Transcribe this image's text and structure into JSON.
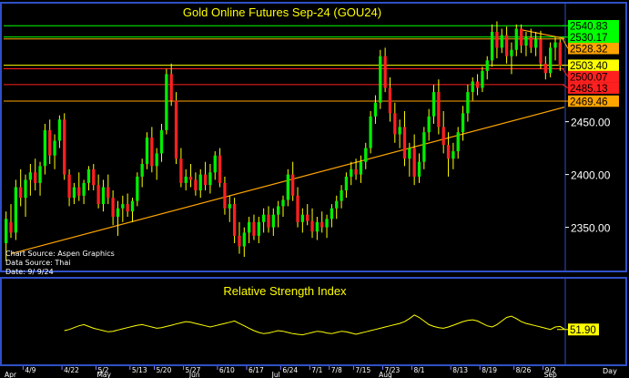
{
  "chart_data": [
    {
      "type": "candlestick",
      "title": "Gold Online Futures Sep-24 (GOU24)",
      "ylim": [
        2310,
        2560
      ],
      "y_ticks": [
        2350,
        2400,
        2450
      ],
      "y_tick_labels": [
        "2350.00",
        "2400.00",
        "2450.00"
      ],
      "x_date_labels": [
        "4/9",
        "4/22",
        "5/2",
        "5/13",
        "5/20",
        "5/27",
        "6/10",
        "6/17",
        "6/24",
        "7/1",
        "7/8",
        "7/15",
        "7/23",
        "8/1",
        "8/13",
        "8/19",
        "8/26",
        "9/2"
      ],
      "x_month_labels": [
        "Apr",
        "May",
        "Jun",
        "Jul",
        "Aug",
        "Sep"
      ],
      "x_end_label": "Day",
      "annotations": [
        "Chart Source: Aspen Graphics",
        "Data Source: Thai",
        "Date: 9/ 9/24"
      ],
      "horizontal_lines": [
        {
          "value": 2540.83,
          "label": "2540.83",
          "color": "#00ff00"
        },
        {
          "value": 2530.17,
          "label": "2530.17",
          "color": "#00ff00"
        },
        {
          "value": 2528.32,
          "label": "2528.32",
          "color": "#ffa500"
        },
        {
          "value": 2503.4,
          "label": "2503.40",
          "color": "#ffff00"
        },
        {
          "value": 2500.07,
          "label": "2500.07",
          "color": "#ff2020"
        },
        {
          "value": 2485.13,
          "label": "2485.13",
          "color": "#ff2020"
        },
        {
          "value": 2469.46,
          "label": "2469.46",
          "color": "#ffa500"
        }
      ],
      "trendlines": [
        {
          "from": [
            1,
            2325
          ],
          "to": [
            120,
            2470
          ],
          "color": "#ffa500"
        },
        {
          "from": [
            106,
            2537
          ],
          "to": [
            120,
            2524
          ],
          "color": "#ffa500"
        }
      ],
      "candles": [
        {
          "o": 2335,
          "h": 2365,
          "l": 2318,
          "c": 2358
        },
        {
          "o": 2355,
          "h": 2372,
          "l": 2340,
          "c": 2345
        },
        {
          "o": 2345,
          "h": 2395,
          "l": 2338,
          "c": 2388
        },
        {
          "o": 2388,
          "h": 2405,
          "l": 2370,
          "c": 2378
        },
        {
          "o": 2378,
          "h": 2400,
          "l": 2360,
          "c": 2395
        },
        {
          "o": 2395,
          "h": 2410,
          "l": 2380,
          "c": 2402
        },
        {
          "o": 2402,
          "h": 2415,
          "l": 2385,
          "c": 2392
        },
        {
          "o": 2392,
          "h": 2412,
          "l": 2380,
          "c": 2408
        },
        {
          "o": 2408,
          "h": 2448,
          "l": 2400,
          "c": 2442
        },
        {
          "o": 2442,
          "h": 2452,
          "l": 2410,
          "c": 2418
        },
        {
          "o": 2418,
          "h": 2438,
          "l": 2405,
          "c": 2432
        },
        {
          "o": 2432,
          "h": 2456,
          "l": 2425,
          "c": 2452
        },
        {
          "o": 2452,
          "h": 2458,
          "l": 2395,
          "c": 2400
        },
        {
          "o": 2400,
          "h": 2405,
          "l": 2370,
          "c": 2378
        },
        {
          "o": 2378,
          "h": 2392,
          "l": 2372,
          "c": 2388
        },
        {
          "o": 2388,
          "h": 2402,
          "l": 2375,
          "c": 2380
        },
        {
          "o": 2380,
          "h": 2395,
          "l": 2372,
          "c": 2392
        },
        {
          "o": 2392,
          "h": 2408,
          "l": 2385,
          "c": 2405
        },
        {
          "o": 2405,
          "h": 2410,
          "l": 2385,
          "c": 2390
        },
        {
          "o": 2390,
          "h": 2400,
          "l": 2368,
          "c": 2372
        },
        {
          "o": 2372,
          "h": 2395,
          "l": 2365,
          "c": 2388
        },
        {
          "o": 2388,
          "h": 2400,
          "l": 2372,
          "c": 2378
        },
        {
          "o": 2378,
          "h": 2385,
          "l": 2352,
          "c": 2360
        },
        {
          "o": 2360,
          "h": 2375,
          "l": 2342,
          "c": 2368
        },
        {
          "o": 2368,
          "h": 2380,
          "l": 2355,
          "c": 2372
        },
        {
          "o": 2372,
          "h": 2382,
          "l": 2360,
          "c": 2365
        },
        {
          "o": 2365,
          "h": 2378,
          "l": 2355,
          "c": 2375
        },
        {
          "o": 2375,
          "h": 2402,
          "l": 2370,
          "c": 2398
        },
        {
          "o": 2398,
          "h": 2415,
          "l": 2388,
          "c": 2410
        },
        {
          "o": 2410,
          "h": 2440,
          "l": 2405,
          "c": 2435
        },
        {
          "o": 2435,
          "h": 2445,
          "l": 2402,
          "c": 2408
        },
        {
          "o": 2408,
          "h": 2425,
          "l": 2395,
          "c": 2420
        },
        {
          "o": 2420,
          "h": 2448,
          "l": 2412,
          "c": 2442
        },
        {
          "o": 2442,
          "h": 2500,
          "l": 2438,
          "c": 2495
        },
        {
          "o": 2495,
          "h": 2505,
          "l": 2465,
          "c": 2470
        },
        {
          "o": 2470,
          "h": 2478,
          "l": 2410,
          "c": 2415
        },
        {
          "o": 2415,
          "h": 2425,
          "l": 2388,
          "c": 2392
        },
        {
          "o": 2392,
          "h": 2405,
          "l": 2385,
          "c": 2398
        },
        {
          "o": 2398,
          "h": 2410,
          "l": 2388,
          "c": 2395
        },
        {
          "o": 2395,
          "h": 2402,
          "l": 2380,
          "c": 2385
        },
        {
          "o": 2385,
          "h": 2405,
          "l": 2378,
          "c": 2400
        },
        {
          "o": 2400,
          "h": 2412,
          "l": 2385,
          "c": 2390
        },
        {
          "o": 2390,
          "h": 2410,
          "l": 2382,
          "c": 2402
        },
        {
          "o": 2402,
          "h": 2422,
          "l": 2395,
          "c": 2418
        },
        {
          "o": 2418,
          "h": 2425,
          "l": 2388,
          "c": 2392
        },
        {
          "o": 2392,
          "h": 2398,
          "l": 2362,
          "c": 2368
        },
        {
          "o": 2368,
          "h": 2380,
          "l": 2355,
          "c": 2372
        },
        {
          "o": 2372,
          "h": 2378,
          "l": 2335,
          "c": 2342
        },
        {
          "o": 2342,
          "h": 2355,
          "l": 2325,
          "c": 2332
        },
        {
          "o": 2332,
          "h": 2350,
          "l": 2322,
          "c": 2345
        },
        {
          "o": 2345,
          "h": 2360,
          "l": 2335,
          "c": 2355
        },
        {
          "o": 2355,
          "h": 2362,
          "l": 2338,
          "c": 2342
        },
        {
          "o": 2342,
          "h": 2360,
          "l": 2335,
          "c": 2355
        },
        {
          "o": 2355,
          "h": 2368,
          "l": 2345,
          "c": 2362
        },
        {
          "o": 2362,
          "h": 2370,
          "l": 2345,
          "c": 2350
        },
        {
          "o": 2350,
          "h": 2368,
          "l": 2342,
          "c": 2362
        },
        {
          "o": 2362,
          "h": 2375,
          "l": 2350,
          "c": 2370
        },
        {
          "o": 2370,
          "h": 2380,
          "l": 2360,
          "c": 2376
        },
        {
          "o": 2376,
          "h": 2405,
          "l": 2370,
          "c": 2400
        },
        {
          "o": 2400,
          "h": 2412,
          "l": 2375,
          "c": 2380
        },
        {
          "o": 2380,
          "h": 2388,
          "l": 2350,
          "c": 2355
        },
        {
          "o": 2355,
          "h": 2368,
          "l": 2345,
          "c": 2362
        },
        {
          "o": 2362,
          "h": 2372,
          "l": 2352,
          "c": 2356
        },
        {
          "o": 2356,
          "h": 2368,
          "l": 2340,
          "c": 2346
        },
        {
          "o": 2346,
          "h": 2360,
          "l": 2338,
          "c": 2355
        },
        {
          "o": 2355,
          "h": 2365,
          "l": 2345,
          "c": 2350
        },
        {
          "o": 2350,
          "h": 2362,
          "l": 2340,
          "c": 2358
        },
        {
          "o": 2358,
          "h": 2372,
          "l": 2350,
          "c": 2368
        },
        {
          "o": 2368,
          "h": 2380,
          "l": 2358,
          "c": 2375
        },
        {
          "o": 2375,
          "h": 2390,
          "l": 2368,
          "c": 2385
        },
        {
          "o": 2385,
          "h": 2402,
          "l": 2378,
          "c": 2398
        },
        {
          "o": 2398,
          "h": 2412,
          "l": 2390,
          "c": 2405
        },
        {
          "o": 2405,
          "h": 2415,
          "l": 2395,
          "c": 2400
        },
        {
          "o": 2400,
          "h": 2418,
          "l": 2392,
          "c": 2412
        },
        {
          "o": 2412,
          "h": 2430,
          "l": 2405,
          "c": 2425
        },
        {
          "o": 2425,
          "h": 2460,
          "l": 2420,
          "c": 2455
        },
        {
          "o": 2455,
          "h": 2475,
          "l": 2448,
          "c": 2468
        },
        {
          "o": 2468,
          "h": 2518,
          "l": 2462,
          "c": 2512
        },
        {
          "o": 2512,
          "h": 2520,
          "l": 2478,
          "c": 2482
        },
        {
          "o": 2482,
          "h": 2492,
          "l": 2450,
          "c": 2458
        },
        {
          "o": 2458,
          "h": 2468,
          "l": 2430,
          "c": 2438
        },
        {
          "o": 2438,
          "h": 2452,
          "l": 2425,
          "c": 2445
        },
        {
          "o": 2445,
          "h": 2460,
          "l": 2408,
          "c": 2415
        },
        {
          "o": 2415,
          "h": 2430,
          "l": 2398,
          "c": 2425
        },
        {
          "o": 2425,
          "h": 2438,
          "l": 2390,
          "c": 2398
        },
        {
          "o": 2398,
          "h": 2420,
          "l": 2392,
          "c": 2412
        },
        {
          "o": 2412,
          "h": 2445,
          "l": 2405,
          "c": 2440
        },
        {
          "o": 2440,
          "h": 2462,
          "l": 2432,
          "c": 2455
        },
        {
          "o": 2455,
          "h": 2485,
          "l": 2448,
          "c": 2478
        },
        {
          "o": 2478,
          "h": 2490,
          "l": 2438,
          "c": 2445
        },
        {
          "o": 2445,
          "h": 2460,
          "l": 2420,
          "c": 2428
        },
        {
          "o": 2428,
          "h": 2440,
          "l": 2398,
          "c": 2415
        },
        {
          "o": 2415,
          "h": 2430,
          "l": 2405,
          "c": 2422
        },
        {
          "o": 2422,
          "h": 2445,
          "l": 2415,
          "c": 2440
        },
        {
          "o": 2440,
          "h": 2465,
          "l": 2432,
          "c": 2458
        },
        {
          "o": 2458,
          "h": 2485,
          "l": 2450,
          "c": 2478
        },
        {
          "o": 2478,
          "h": 2492,
          "l": 2470,
          "c": 2488
        },
        {
          "o": 2488,
          "h": 2495,
          "l": 2475,
          "c": 2482
        },
        {
          "o": 2482,
          "h": 2502,
          "l": 2478,
          "c": 2498
        },
        {
          "o": 2498,
          "h": 2512,
          "l": 2490,
          "c": 2508
        },
        {
          "o": 2508,
          "h": 2542,
          "l": 2502,
          "c": 2535
        },
        {
          "o": 2535,
          "h": 2545,
          "l": 2510,
          "c": 2520
        },
        {
          "o": 2520,
          "h": 2538,
          "l": 2515,
          "c": 2532
        },
        {
          "o": 2532,
          "h": 2540,
          "l": 2505,
          "c": 2512
        },
        {
          "o": 2512,
          "h": 2525,
          "l": 2495,
          "c": 2518
        },
        {
          "o": 2518,
          "h": 2542,
          "l": 2512,
          "c": 2538
        },
        {
          "o": 2538,
          "h": 2542,
          "l": 2515,
          "c": 2522
        },
        {
          "o": 2522,
          "h": 2535,
          "l": 2512,
          "c": 2530
        },
        {
          "o": 2530,
          "h": 2538,
          "l": 2515,
          "c": 2520
        },
        {
          "o": 2520,
          "h": 2535,
          "l": 2512,
          "c": 2528
        },
        {
          "o": 2528,
          "h": 2536,
          "l": 2500,
          "c": 2505
        },
        {
          "o": 2505,
          "h": 2512,
          "l": 2490,
          "c": 2496
        },
        {
          "o": 2496,
          "h": 2525,
          "l": 2492,
          "c": 2520
        },
        {
          "o": 2520,
          "h": 2530,
          "l": 2508,
          "c": 2525
        },
        {
          "o": 2525,
          "h": 2528,
          "l": 2498,
          "c": 2503
        }
      ]
    },
    {
      "type": "line",
      "title": "Relative Strength Index",
      "ylim": [
        0,
        100
      ],
      "last_value_label": "51.90",
      "series": [
        {
          "start_index": 12,
          "values": [
            50,
            52,
            55,
            58,
            60,
            57,
            54,
            52,
            50,
            48,
            49,
            51,
            53,
            55,
            57,
            59,
            60,
            58,
            56,
            54,
            55,
            57,
            59,
            61,
            63,
            65,
            64,
            62,
            60,
            58,
            56,
            58,
            60,
            62,
            64,
            66,
            62,
            58,
            54,
            50,
            47,
            45,
            46,
            48,
            50,
            49,
            47,
            45,
            44,
            43,
            45,
            47,
            49,
            48,
            46,
            45,
            47,
            49,
            48,
            46,
            44,
            46,
            48,
            50,
            52,
            54,
            56,
            58,
            60,
            62,
            65,
            70,
            76,
            72,
            66,
            60,
            57,
            55,
            54,
            56,
            59,
            62,
            65,
            67,
            68,
            66,
            62,
            58,
            56,
            60,
            66,
            72,
            74,
            70,
            65,
            62,
            60,
            58,
            56,
            54,
            52,
            56,
            57,
            52,
            51.9
          ]
        }
      ]
    }
  ]
}
